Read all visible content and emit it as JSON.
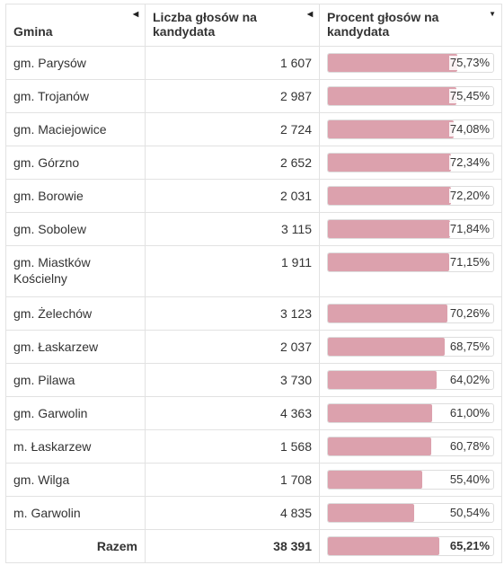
{
  "columns": [
    {
      "label": "Gmina",
      "sort_icon": "sort-left-triangle-icon"
    },
    {
      "label": "Liczba głosów na kandydata",
      "sort_icon": "sort-left-triangle-icon"
    },
    {
      "label": "Procent głosów na kandydata",
      "sort_icon": "sort-down-triangle-icon"
    }
  ],
  "bar_color": "#dca1ad",
  "rows": [
    {
      "gmina": "gm. Parysów",
      "glosy": "1 607",
      "procent_label": "75,73%",
      "procent": 75.73
    },
    {
      "gmina": "gm. Trojanów",
      "glosy": "2 987",
      "procent_label": "75,45%",
      "procent": 75.45
    },
    {
      "gmina": "gm. Maciejowice",
      "glosy": "2 724",
      "procent_label": "74,08%",
      "procent": 74.08
    },
    {
      "gmina": "gm. Górzno",
      "glosy": "2 652",
      "procent_label": "72,34%",
      "procent": 72.34
    },
    {
      "gmina": "gm. Borowie",
      "glosy": "2 031",
      "procent_label": "72,20%",
      "procent": 72.2
    },
    {
      "gmina": "gm. Sobolew",
      "glosy": "3 115",
      "procent_label": "71,84%",
      "procent": 71.84
    },
    {
      "gmina": "gm. Miastków Kościelny",
      "glosy": "1 911",
      "procent_label": "71,15%",
      "procent": 71.15
    },
    {
      "gmina": "gm. Żelechów",
      "glosy": "3 123",
      "procent_label": "70,26%",
      "procent": 70.26
    },
    {
      "gmina": "gm. Łaskarzew",
      "glosy": "2 037",
      "procent_label": "68,75%",
      "procent": 68.75
    },
    {
      "gmina": "gm. Pilawa",
      "glosy": "3 730",
      "procent_label": "64,02%",
      "procent": 64.02
    },
    {
      "gmina": "gm. Garwolin",
      "glosy": "4 363",
      "procent_label": "61,00%",
      "procent": 61.0
    },
    {
      "gmina": "m. Łaskarzew",
      "glosy": "1 568",
      "procent_label": "60,78%",
      "procent": 60.78
    },
    {
      "gmina": "gm. Wilga",
      "glosy": "1 708",
      "procent_label": "55,40%",
      "procent": 55.4
    },
    {
      "gmina": "m. Garwolin",
      "glosy": "4 835",
      "procent_label": "50,54%",
      "procent": 50.54
    }
  ],
  "total": {
    "label": "Razem",
    "glosy": "38 391",
    "procent_label": "65,21%",
    "procent": 65.21
  }
}
